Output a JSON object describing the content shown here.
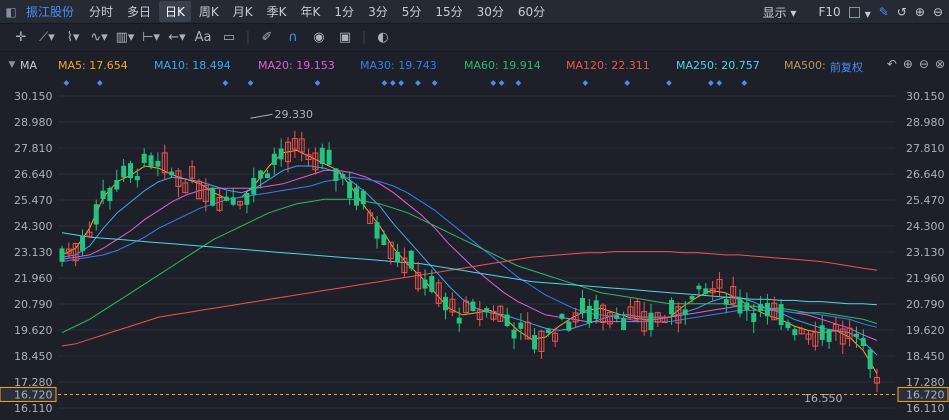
{
  "topbar": {
    "stock_name": "振江股份",
    "periods": [
      "分时",
      "多日",
      "日K",
      "周K",
      "月K",
      "季K",
      "年K",
      "1分",
      "3分",
      "5分",
      "15分",
      "30分",
      "60分"
    ],
    "active_period": "日K",
    "display_label": "显示",
    "f10_label": "F10"
  },
  "toolbar": {
    "text_tool": "Aa"
  },
  "ma_legend": {
    "name": "MA",
    "items": [
      {
        "label": "MA5: 17.654",
        "color": "#f5a623"
      },
      {
        "label": "MA10: 18.494",
        "color": "#3da6f2"
      },
      {
        "label": "MA20: 19.153",
        "color": "#e05fd5"
      },
      {
        "label": "MA30: 19.743",
        "color": "#3c7bf0"
      },
      {
        "label": "MA60: 19.914",
        "color": "#2fb86b"
      },
      {
        "label": "MA120: 22.311",
        "color": "#ef5350"
      },
      {
        "label": "MA250: 20.757",
        "color": "#4dd6e6"
      },
      {
        "label": "MA500: ",
        "color": "#b09a5a"
      }
    ],
    "adjust_label": "前复权"
  },
  "chart_data": {
    "type": "candlestick",
    "y_ticks": [
      "30.150",
      "28.980",
      "27.810",
      "26.640",
      "25.470",
      "24.300",
      "23.130",
      "21.960",
      "20.790",
      "19.620",
      "18.450",
      "17.280",
      "16.110"
    ],
    "ylim": [
      16.11,
      30.15
    ],
    "high_label": "29.330",
    "low_label": "16.550",
    "last_price": "16.720",
    "up_color": "#ef5350",
    "down_color": "#26c281",
    "ma_series": {
      "MA5": [
        23.0,
        23.3,
        24.2,
        25.6,
        26.3,
        26.6,
        27.0,
        26.9,
        26.6,
        26.4,
        26.2,
        25.8,
        25.5,
        25.6,
        26.2,
        27.0,
        27.6,
        27.7,
        27.4,
        27.1,
        26.8,
        26.0,
        25.1,
        24.3,
        23.3,
        22.6,
        22.0,
        21.3,
        20.6,
        20.3,
        20.4,
        20.5,
        20.2,
        19.6,
        19.2,
        19.3,
        19.8,
        20.2,
        20.5,
        20.6,
        20.4,
        20.2,
        20.1,
        20.1,
        20.2,
        20.7,
        21.1,
        21.4,
        21.3,
        21.0,
        20.6,
        20.3,
        20.1,
        19.8,
        19.6,
        19.5,
        19.6,
        19.3,
        18.7,
        17.65
      ],
      "MA10": [
        22.9,
        23.0,
        23.4,
        24.2,
        24.9,
        25.4,
        25.9,
        26.3,
        26.5,
        26.4,
        26.3,
        26.1,
        25.9,
        25.8,
        26.0,
        26.4,
        26.8,
        27.0,
        27.0,
        26.9,
        26.7,
        26.3,
        25.8,
        25.2,
        24.4,
        23.7,
        23.0,
        22.3,
        21.6,
        21.0,
        20.6,
        20.4,
        20.3,
        20.1,
        19.9,
        19.7,
        19.6,
        19.7,
        19.9,
        20.1,
        20.3,
        20.3,
        20.2,
        20.2,
        20.2,
        20.4,
        20.6,
        20.9,
        21.1,
        21.1,
        20.9,
        20.6,
        20.4,
        20.1,
        19.9,
        19.7,
        19.6,
        19.5,
        19.1,
        18.49
      ],
      "MA20": [
        22.8,
        22.9,
        23.0,
        23.3,
        23.7,
        24.1,
        24.6,
        25.0,
        25.4,
        25.7,
        25.9,
        26.0,
        26.0,
        26.0,
        26.0,
        26.1,
        26.2,
        26.4,
        26.6,
        26.8,
        26.8,
        26.7,
        26.5,
        26.2,
        25.8,
        25.3,
        24.8,
        24.2,
        23.5,
        22.9,
        22.3,
        21.8,
        21.3,
        20.9,
        20.6,
        20.3,
        20.2,
        20.1,
        20.0,
        20.0,
        20.0,
        20.0,
        20.0,
        20.1,
        20.2,
        20.3,
        20.4,
        20.5,
        20.6,
        20.7,
        20.7,
        20.6,
        20.5,
        20.4,
        20.3,
        20.1,
        19.9,
        19.7,
        19.4,
        19.15
      ],
      "MA30": [
        22.7,
        22.8,
        22.9,
        23.0,
        23.2,
        23.5,
        23.8,
        24.2,
        24.5,
        24.8,
        25.1,
        25.3,
        25.5,
        25.6,
        25.7,
        25.8,
        25.9,
        26.0,
        26.1,
        26.3,
        26.4,
        26.5,
        26.4,
        26.3,
        26.1,
        25.8,
        25.4,
        25.0,
        24.5,
        24.0,
        23.5,
        23.0,
        22.5,
        22.0,
        21.6,
        21.2,
        20.9,
        20.6,
        20.4,
        20.3,
        20.2,
        20.1,
        20.0,
        20.0,
        20.0,
        20.1,
        20.2,
        20.3,
        20.4,
        20.5,
        20.5,
        20.5,
        20.5,
        20.4,
        20.4,
        20.3,
        20.2,
        20.1,
        19.9,
        19.74
      ],
      "MA60": [
        19.5,
        19.8,
        20.1,
        20.5,
        20.9,
        21.3,
        21.7,
        22.1,
        22.5,
        22.9,
        23.3,
        23.7,
        24.0,
        24.3,
        24.6,
        24.9,
        25.1,
        25.3,
        25.4,
        25.5,
        25.5,
        25.5,
        25.4,
        25.3,
        25.1,
        24.9,
        24.6,
        24.3,
        24.0,
        23.7,
        23.4,
        23.1,
        22.8,
        22.5,
        22.3,
        22.1,
        21.9,
        21.7,
        21.5,
        21.3,
        21.2,
        21.1,
        21.0,
        20.9,
        20.8,
        20.8,
        20.8,
        20.8,
        20.8,
        20.7,
        20.7,
        20.6,
        20.6,
        20.5,
        20.4,
        20.4,
        20.3,
        20.2,
        20.1,
        19.91
      ],
      "MA120": [
        18.9,
        19.0,
        19.2,
        19.4,
        19.6,
        19.8,
        20.0,
        20.2,
        20.3,
        20.4,
        20.5,
        20.6,
        20.7,
        20.8,
        20.9,
        21.0,
        21.1,
        21.2,
        21.3,
        21.4,
        21.5,
        21.6,
        21.7,
        21.8,
        21.9,
        22.0,
        22.1,
        22.2,
        22.3,
        22.4,
        22.5,
        22.6,
        22.7,
        22.8,
        22.9,
        22.95,
        23.0,
        23.05,
        23.1,
        23.1,
        23.15,
        23.15,
        23.15,
        23.15,
        23.15,
        23.1,
        23.1,
        23.05,
        23.0,
        23.0,
        22.95,
        22.9,
        22.85,
        22.8,
        22.75,
        22.7,
        22.6,
        22.5,
        22.4,
        22.31
      ],
      "MA250": [
        24.0,
        23.9,
        23.8,
        23.75,
        23.7,
        23.65,
        23.6,
        23.55,
        23.5,
        23.45,
        23.4,
        23.35,
        23.3,
        23.25,
        23.2,
        23.15,
        23.1,
        23.05,
        23.0,
        22.95,
        22.9,
        22.85,
        22.8,
        22.75,
        22.7,
        22.65,
        22.6,
        22.5,
        22.4,
        22.3,
        22.2,
        22.1,
        22.0,
        21.9,
        21.8,
        21.75,
        21.7,
        21.65,
        21.6,
        21.55,
        21.5,
        21.45,
        21.4,
        21.35,
        21.3,
        21.25,
        21.2,
        21.15,
        21.1,
        21.05,
        21.0,
        21.0,
        20.95,
        20.95,
        20.9,
        20.9,
        20.85,
        20.8,
        20.8,
        20.76
      ]
    }
  }
}
